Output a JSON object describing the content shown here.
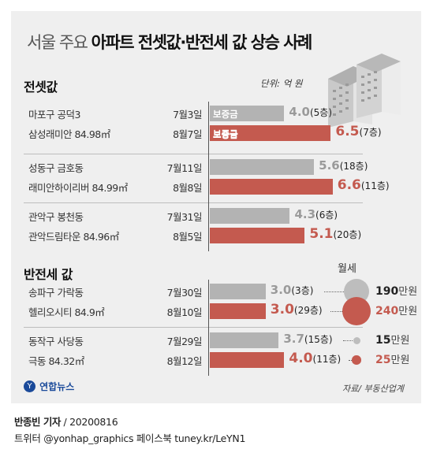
{
  "title": {
    "prefix": "서울 주요 ",
    "main": "아파트 전셋값·반전세 값 상승 사례"
  },
  "unit_label": "단위: 억 원",
  "colors": {
    "gray": "#b3b3b3",
    "red": "#c45a4f",
    "background": "#efefef"
  },
  "deposit_label": "보증금",
  "monthly_header": "월세",
  "fee_unit": "만원",
  "chart_data": [
    {
      "type": "bar",
      "title": "전셋값",
      "categories": [
        {
          "district": "마포구 공덕3",
          "complex": "삼성래미안 84.98㎡"
        },
        {
          "district": "성동구 금호동",
          "complex": "래미안하이리버 84.99㎡"
        },
        {
          "district": "관악구 봉천동",
          "complex": "관악드림타운 84.96㎡"
        }
      ],
      "series": [
        {
          "dates": [
            "7월3일",
            "7월11일",
            "7월31일"
          ],
          "values": [
            4.0,
            5.6,
            4.3
          ],
          "labels": [
            "4.0",
            "5.6",
            "4.3"
          ],
          "floors": [
            "(5층)",
            "(18층)",
            "(6층)"
          ],
          "color": "#b3b3b3"
        },
        {
          "dates": [
            "8월7일",
            "8월8일",
            "8월5일"
          ],
          "values": [
            6.5,
            6.6,
            5.1
          ],
          "labels": [
            "6.5",
            "6.6",
            "5.1"
          ],
          "floors": [
            "(7층)",
            "(11층)",
            "(20층)"
          ],
          "color": "#c45a4f"
        }
      ]
    },
    {
      "type": "bar",
      "title": "반전세 값",
      "categories": [
        {
          "district": "송파구 가락동",
          "complex": "헬리오시티 84.9㎡"
        },
        {
          "district": "동작구 사당동",
          "complex": "극동 84.32㎡"
        }
      ],
      "series": [
        {
          "dates": [
            "7월30일",
            "7월29일"
          ],
          "values": [
            3.0,
            3.7
          ],
          "labels": [
            "3.0",
            "3.7"
          ],
          "floors": [
            "(3층)",
            "(15층)"
          ],
          "monthly_rent": [
            190,
            15
          ],
          "color": "#b3b3b3"
        },
        {
          "dates": [
            "8월10일",
            "8월12일"
          ],
          "values": [
            3.0,
            4.0
          ],
          "labels": [
            "3.0",
            "4.0"
          ],
          "floors": [
            "(29층)",
            "(11층)"
          ],
          "monthly_rent": [
            240,
            25
          ],
          "color": "#c45a4f"
        }
      ]
    }
  ],
  "source": "자료/ 부동산업계",
  "logo": "연합뉴스",
  "credit": {
    "author": "반종빈 기자",
    "date": " / 20200816"
  },
  "social": "트위터 @yonhap_graphics  페이스북 tuney.kr/LeYN1"
}
